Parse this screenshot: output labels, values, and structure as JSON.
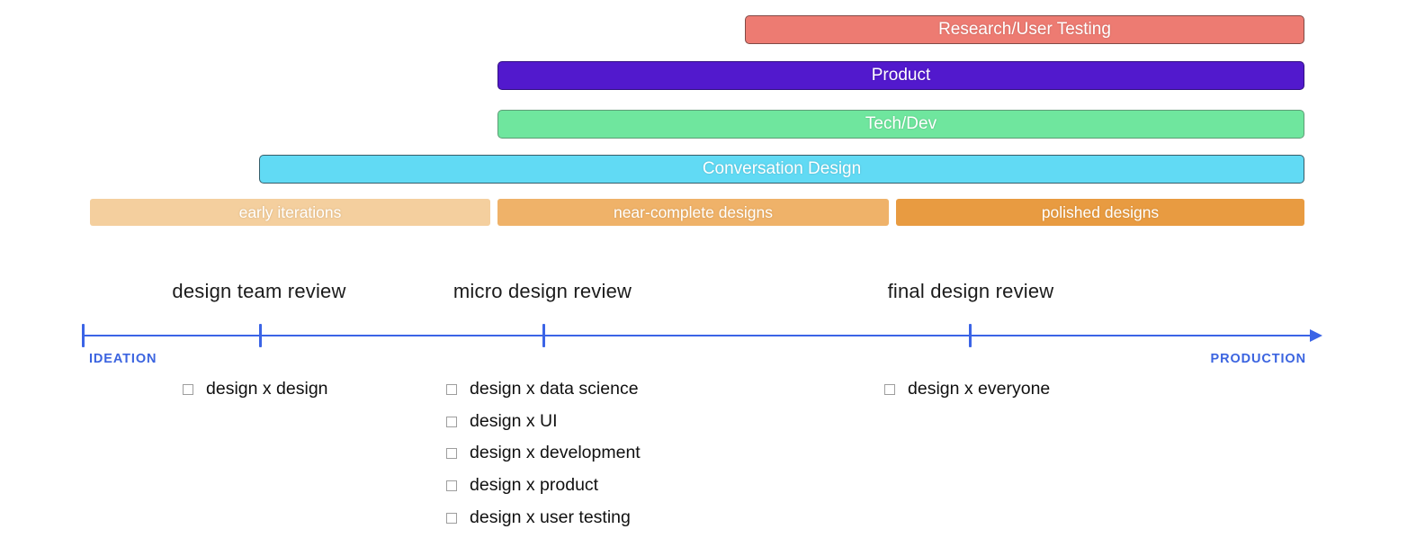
{
  "team_bars": [
    {
      "id": "research-user-testing",
      "label": "Research/User Testing",
      "color": "#ED7B72"
    },
    {
      "id": "product",
      "label": "Product",
      "color": "#5219CD"
    },
    {
      "id": "tech-dev",
      "label": "Tech/Dev",
      "color": "#6FE69E"
    },
    {
      "id": "conversation-design",
      "label": "Conversation Design",
      "color": "#61DAF4"
    }
  ],
  "phase_bars": [
    {
      "id": "early-iterations",
      "label": "early iterations",
      "color": "#F4CF9E"
    },
    {
      "id": "near-complete-designs",
      "label": "near-complete designs",
      "color": "#EFB269"
    },
    {
      "id": "polished-designs",
      "label": "polished designs",
      "color": "#E89B41"
    }
  ],
  "timeline": {
    "start_label": "IDEATION",
    "end_label": "PRODUCTION",
    "axis_color": "#3B64E6"
  },
  "review_groups": [
    {
      "title": "design team review",
      "items": [
        "design x design"
      ]
    },
    {
      "title": "micro design review",
      "items": [
        "design x data science",
        "design x UI",
        "design x development",
        "design x product",
        "design x user testing"
      ]
    },
    {
      "title": "final design review",
      "items": [
        "design x everyone"
      ]
    }
  ]
}
